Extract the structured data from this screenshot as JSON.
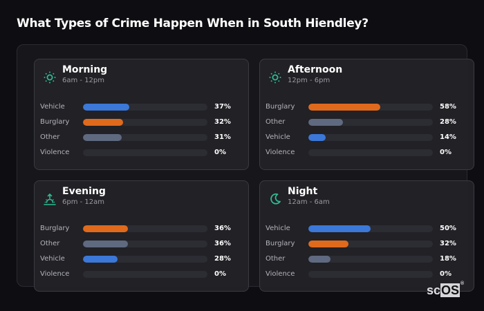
{
  "page": {
    "title": "What Types of Crime Happen When in South Hiendley?"
  },
  "colors": {
    "accent_icon": "#2dbd92",
    "vehicle": "#3b78d8",
    "burglary": "#e06a1c",
    "other": "#5f6a80",
    "violence": "#2c2c33",
    "track": "#2c2c33"
  },
  "cards": [
    {
      "title": "Morning",
      "subtitle": "6am - 12pm",
      "icon": "sun-icon",
      "rows": [
        {
          "label": "Vehicle",
          "value": 37,
          "pct": "37%",
          "color": "#3b78d8"
        },
        {
          "label": "Burglary",
          "value": 32,
          "pct": "32%",
          "color": "#e06a1c"
        },
        {
          "label": "Other",
          "value": 31,
          "pct": "31%",
          "color": "#5f6a80"
        },
        {
          "label": "Violence",
          "value": 0,
          "pct": "0%",
          "color": "#2c2c33"
        }
      ]
    },
    {
      "title": "Afternoon",
      "subtitle": "12pm - 6pm",
      "icon": "sun-icon",
      "rows": [
        {
          "label": "Burglary",
          "value": 58,
          "pct": "58%",
          "color": "#e06a1c"
        },
        {
          "label": "Other",
          "value": 28,
          "pct": "28%",
          "color": "#5f6a80"
        },
        {
          "label": "Vehicle",
          "value": 14,
          "pct": "14%",
          "color": "#3b78d8"
        },
        {
          "label": "Violence",
          "value": 0,
          "pct": "0%",
          "color": "#2c2c33"
        }
      ]
    },
    {
      "title": "Evening",
      "subtitle": "6pm - 12am",
      "icon": "sunset-icon",
      "rows": [
        {
          "label": "Burglary",
          "value": 36,
          "pct": "36%",
          "color": "#e06a1c"
        },
        {
          "label": "Other",
          "value": 36,
          "pct": "36%",
          "color": "#5f6a80"
        },
        {
          "label": "Vehicle",
          "value": 28,
          "pct": "28%",
          "color": "#3b78d8"
        },
        {
          "label": "Violence",
          "value": 0,
          "pct": "0%",
          "color": "#2c2c33"
        }
      ]
    },
    {
      "title": "Night",
      "subtitle": "12am - 6am",
      "icon": "moon-icon",
      "rows": [
        {
          "label": "Vehicle",
          "value": 50,
          "pct": "50%",
          "color": "#3b78d8"
        },
        {
          "label": "Burglary",
          "value": 32,
          "pct": "32%",
          "color": "#e06a1c"
        },
        {
          "label": "Other",
          "value": 18,
          "pct": "18%",
          "color": "#5f6a80"
        },
        {
          "label": "Violence",
          "value": 0,
          "pct": "0%",
          "color": "#2c2c33"
        }
      ]
    }
  ],
  "watermark": {
    "prefix": "sc",
    "highlight": "OS",
    "mark": "®"
  }
}
